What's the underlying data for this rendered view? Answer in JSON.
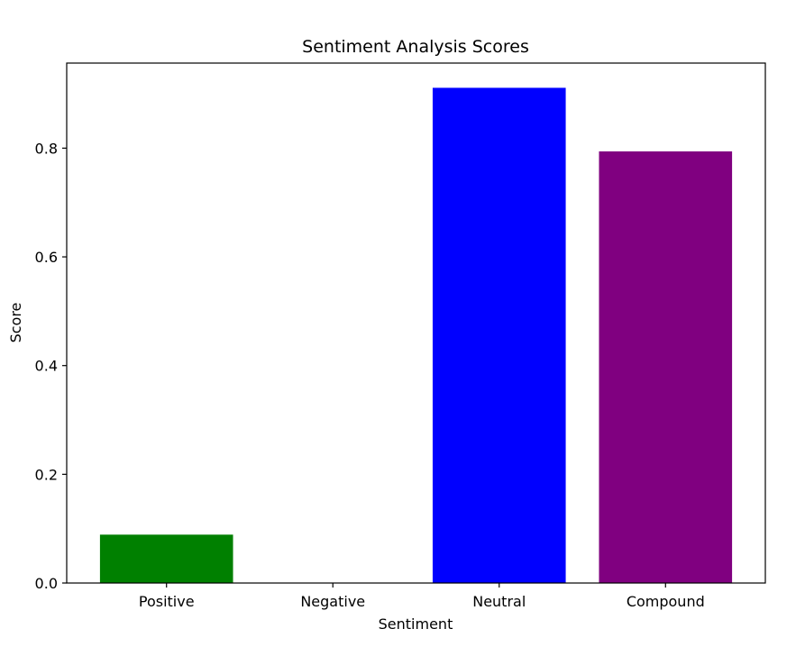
{
  "chart_data": {
    "type": "bar",
    "title": "Sentiment Analysis Scores",
    "xlabel": "Sentiment",
    "ylabel": "Score",
    "categories": [
      "Positive",
      "Negative",
      "Neutral",
      "Compound"
    ],
    "values": [
      0.089,
      0.0,
      0.911,
      0.794
    ],
    "colors": [
      "#008000",
      "#ff0000",
      "#0000ff",
      "#800080"
    ],
    "ylim": [
      0,
      0.9565
    ],
    "yticks": [
      0.0,
      0.2,
      0.4,
      0.6,
      0.8
    ],
    "ytick_labels": [
      "0.0",
      "0.2",
      "0.4",
      "0.6",
      "0.8"
    ],
    "grid": false,
    "legend": "none"
  }
}
